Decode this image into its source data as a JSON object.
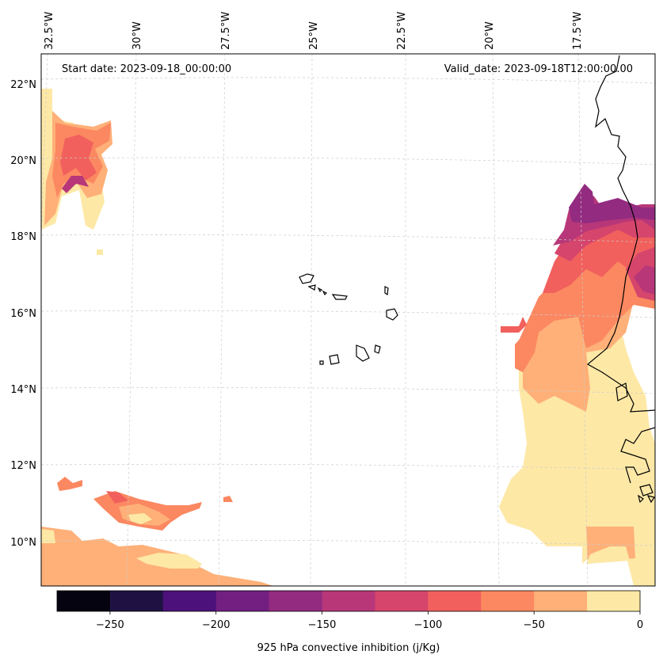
{
  "header": {
    "start_date": "Start date: 2023-09-18_00:00:00",
    "valid_date": "Valid_date: 2023-09-18T12:00:00.00"
  },
  "longitude_labels": [
    "32.5°W",
    "30°W",
    "27.5°W",
    "25°W",
    "22.5°W",
    "20°W",
    "17.5°W"
  ],
  "latitude_labels": [
    "22°N",
    "20°N",
    "18°N",
    "16°N",
    "14°N",
    "12°N",
    "10°N"
  ],
  "colorbar": {
    "label": "925 hPa convective inhibition (j/Kg)",
    "ticks": [
      "−250",
      "−200",
      "−150",
      "−100",
      "−50",
      "0"
    ],
    "levels": [
      -275,
      -250,
      -225,
      -200,
      -175,
      -150,
      -125,
      -100,
      -75,
      -50,
      -25,
      0
    ],
    "colors": [
      "#05030f",
      "#1f1243",
      "#4c117a",
      "#721f81",
      "#932b80",
      "#b73779",
      "#d6456c",
      "#f1605d",
      "#fb8861",
      "#feb078",
      "#fde8a6"
    ]
  },
  "field_colors": {
    "cin_m25_0": "#fde8a6",
    "cin_m50_m25": "#feb078",
    "cin_m75_m50": "#fb8861",
    "cin_m100_m75": "#f1605d",
    "cin_m125_m100": "#d6456c",
    "cin_m150_m125": "#b73779",
    "cin_m175_m150": "#932b80"
  }
}
